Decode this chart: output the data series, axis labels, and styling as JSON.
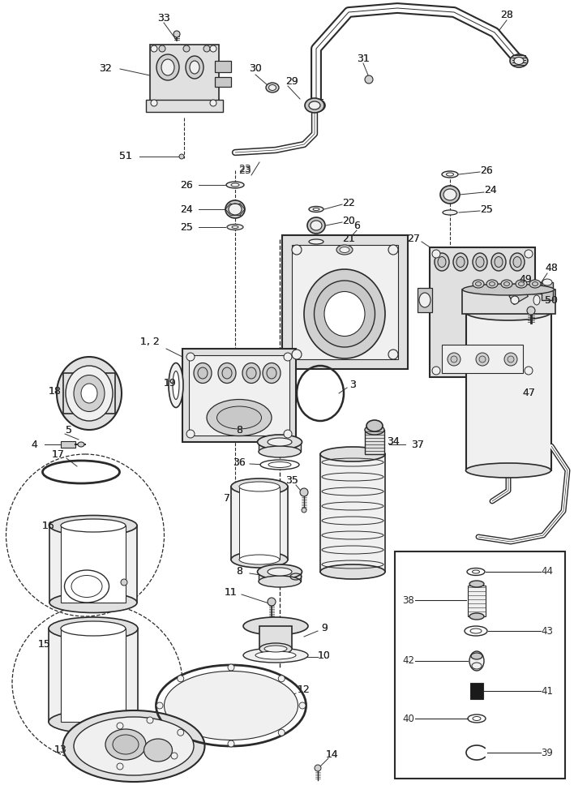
{
  "bg_color": "#ffffff",
  "line_color": "#2a2a2a",
  "figsize": [
    7.08,
    10.0
  ],
  "dpi": 100
}
